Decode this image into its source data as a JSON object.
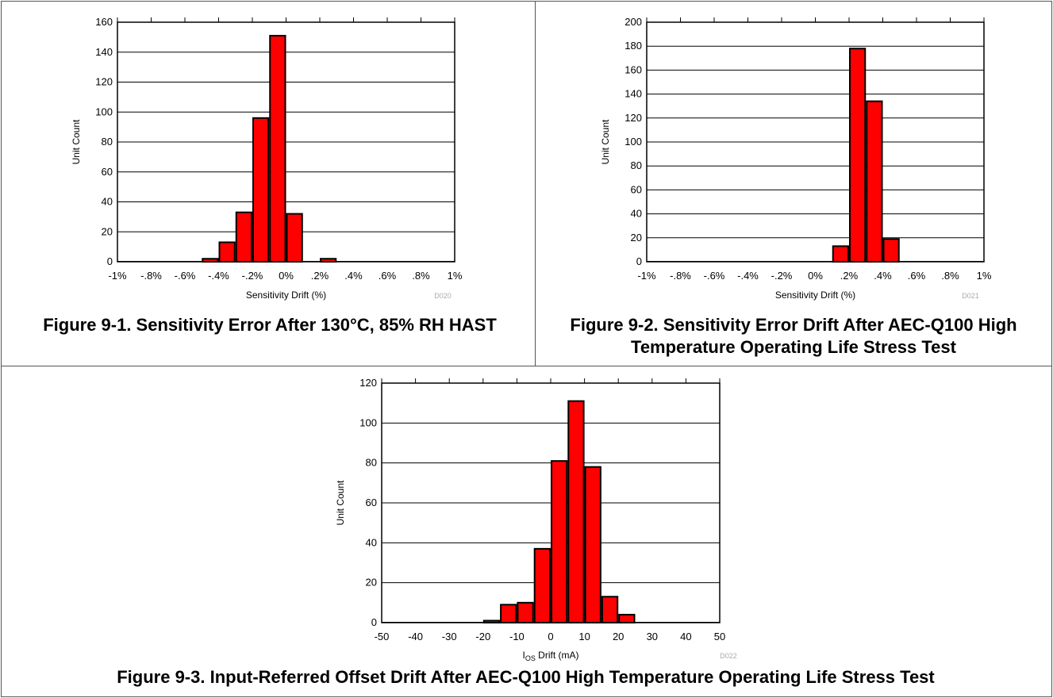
{
  "colors": {
    "bar": "#ff0000",
    "bar_edge": "#000000",
    "grid": "#000000",
    "border": "#555555",
    "code": "#aaaaaa"
  },
  "chart_data": [
    {
      "type": "bar",
      "id": "fig1",
      "title": "Figure 9-1. Sensitivity Error After 130°C, 85% RH HAST",
      "xlabel": "Sensitivity Drift (%)",
      "ylabel": "Unit Count",
      "code": "D020",
      "xlim": [
        -1,
        1
      ],
      "ylim": [
        0,
        160
      ],
      "yticks": [
        0,
        20,
        40,
        60,
        80,
        100,
        120,
        140,
        160
      ],
      "xticks": [
        -1,
        -0.8,
        -0.6,
        -0.4,
        -0.2,
        0,
        0.2,
        0.4,
        0.6,
        0.8,
        1
      ],
      "xtick_labels": [
        "-1%",
        "-.8%",
        "-.6%",
        "-.4%",
        "-.2%",
        "0%",
        ".2%",
        ".4%",
        ".6%",
        ".8%",
        "1%"
      ],
      "grid": "horizontal",
      "bin_width": 0.1,
      "bins": [
        [
          -1.0,
          0
        ],
        [
          -0.9,
          0
        ],
        [
          -0.8,
          0
        ],
        [
          -0.7,
          0
        ],
        [
          -0.6,
          0
        ],
        [
          -0.5,
          2
        ],
        [
          -0.4,
          13
        ],
        [
          -0.3,
          33
        ],
        [
          -0.2,
          96
        ],
        [
          -0.1,
          151
        ],
        [
          0.0,
          32
        ],
        [
          0.1,
          0
        ],
        [
          0.2,
          2
        ],
        [
          0.3,
          0
        ],
        [
          0.4,
          0
        ],
        [
          0.5,
          0
        ],
        [
          0.6,
          0
        ],
        [
          0.7,
          0
        ],
        [
          0.8,
          0
        ],
        [
          0.9,
          0
        ]
      ]
    },
    {
      "type": "bar",
      "id": "fig2",
      "title": "Figure 9-2. Sensitivity Error Drift After AEC-Q100 High Temperature Operating Life Stress Test",
      "xlabel": "Sensitivity Drift (%)",
      "ylabel": "Unit Count",
      "code": "D021",
      "xlim": [
        -1,
        1
      ],
      "ylim": [
        0,
        200
      ],
      "yticks": [
        0,
        20,
        40,
        60,
        80,
        100,
        120,
        140,
        160,
        180,
        200
      ],
      "xticks": [
        -1,
        -0.8,
        -0.6,
        -0.4,
        -0.2,
        0,
        0.2,
        0.4,
        0.6,
        0.8,
        1
      ],
      "xtick_labels": [
        "-1%",
        "-.8%",
        "-.6%",
        "-.4%",
        "-.2%",
        "0%",
        ".2%",
        ".4%",
        ".6%",
        ".8%",
        "1%"
      ],
      "grid": "horizontal",
      "bin_width": 0.1,
      "bins": [
        [
          -1.0,
          0
        ],
        [
          -0.9,
          0
        ],
        [
          -0.8,
          0
        ],
        [
          -0.7,
          0
        ],
        [
          -0.6,
          0
        ],
        [
          -0.5,
          0
        ],
        [
          -0.4,
          0
        ],
        [
          -0.3,
          0
        ],
        [
          -0.2,
          0
        ],
        [
          -0.1,
          0
        ],
        [
          0.0,
          0
        ],
        [
          0.1,
          13
        ],
        [
          0.2,
          178
        ],
        [
          0.3,
          134
        ],
        [
          0.4,
          19
        ],
        [
          0.5,
          0
        ],
        [
          0.6,
          0
        ],
        [
          0.7,
          0
        ],
        [
          0.8,
          0
        ],
        [
          0.9,
          0
        ]
      ]
    },
    {
      "type": "bar",
      "id": "fig3",
      "title": "Figure 9-3. Input-Referred Offset Drift After AEC-Q100 High Temperature Operating Life Stress Test",
      "xlabel_main": "I",
      "xlabel_sub": "OS",
      "xlabel_rest": " Drift (mA)",
      "ylabel": "Unit Count",
      "code": "D022",
      "xlim": [
        -50,
        50
      ],
      "ylim": [
        0,
        120
      ],
      "yticks": [
        0,
        20,
        40,
        60,
        80,
        100,
        120
      ],
      "xticks": [
        -50,
        -40,
        -30,
        -20,
        -10,
        0,
        10,
        20,
        30,
        40,
        50
      ],
      "xtick_labels": [
        "-50",
        "-40",
        "-30",
        "-20",
        "-10",
        "0",
        "10",
        "20",
        "30",
        "40",
        "50"
      ],
      "grid": "horizontal",
      "bin_width": 5,
      "bins": [
        [
          -50,
          0
        ],
        [
          -45,
          0
        ],
        [
          -40,
          0
        ],
        [
          -35,
          0
        ],
        [
          -30,
          0
        ],
        [
          -25,
          0
        ],
        [
          -20,
          1
        ],
        [
          -15,
          9
        ],
        [
          -10,
          10
        ],
        [
          -5,
          37
        ],
        [
          0,
          81
        ],
        [
          5,
          111
        ],
        [
          10,
          78
        ],
        [
          15,
          13
        ],
        [
          20,
          4
        ],
        [
          25,
          0
        ],
        [
          30,
          0
        ],
        [
          35,
          0
        ],
        [
          40,
          0
        ],
        [
          45,
          0
        ]
      ]
    }
  ]
}
